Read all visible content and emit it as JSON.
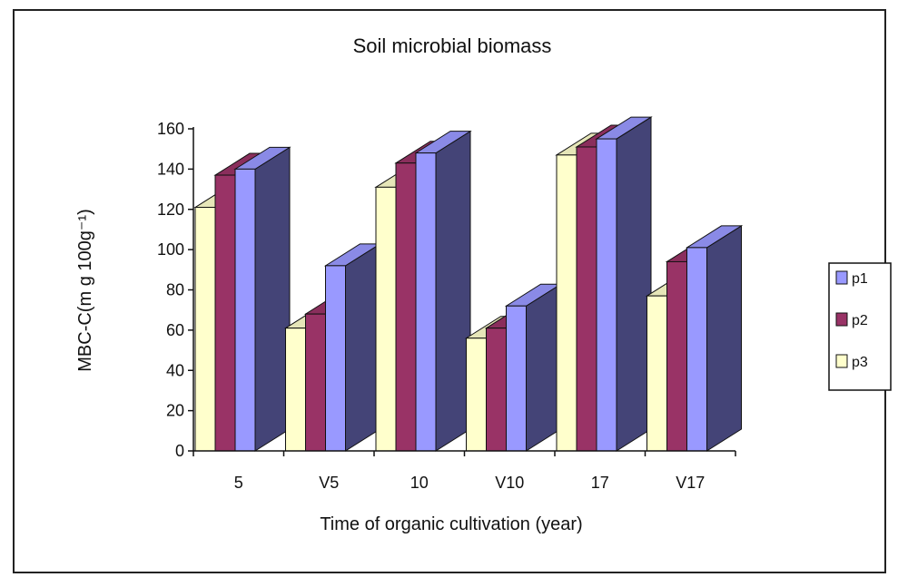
{
  "chart_data": {
    "type": "bar",
    "title": "Soil microbial biomass",
    "xlabel": "Time of organic cultivation (year)",
    "ylabel": "MBC-C(m g 100g⁻¹)",
    "categories": [
      "5",
      "V5",
      "10",
      "V10",
      "17",
      "V17"
    ],
    "ylim": [
      0,
      160
    ],
    "yticks": [
      "0",
      "20",
      "40",
      "60",
      "80",
      "100",
      "120",
      "140",
      "160"
    ],
    "series": [
      {
        "name": "p3",
        "values": [
          121,
          61,
          131,
          56,
          147,
          77
        ],
        "color": "#FFFFCC"
      },
      {
        "name": "p2",
        "values": [
          137,
          68,
          143,
          61,
          151,
          94
        ],
        "color": "#993366"
      },
      {
        "name": "p1",
        "values": [
          140,
          92,
          148,
          72,
          155,
          101
        ],
        "color": "#9999FF"
      }
    ],
    "legend": {
      "placement": "right",
      "order": [
        "p1",
        "p2",
        "p3"
      ]
    },
    "grid": false,
    "style": "3d-clustered-column"
  }
}
